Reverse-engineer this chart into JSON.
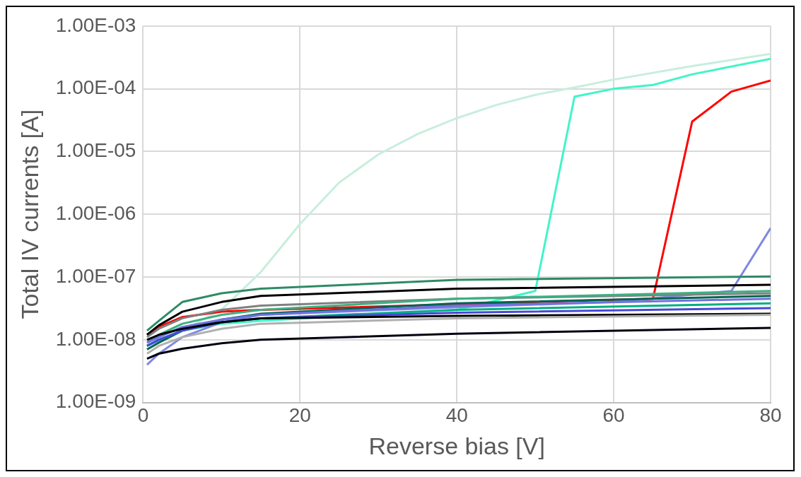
{
  "chart_data": {
    "type": "line",
    "xlabel": "Reverse bias [V]",
    "ylabel": "Total IV currents [A]",
    "log": "y",
    "grid": true,
    "legend": false,
    "marker": "none",
    "line_style": "solid",
    "xlim": [
      0,
      80
    ],
    "xticks": [
      0,
      20,
      40,
      60,
      80
    ],
    "ylim": [
      1e-09,
      0.001
    ],
    "yticks": [
      {
        "value": 1e-09,
        "label": "1.00E-09"
      },
      {
        "value": 1e-08,
        "label": "1.00E-08"
      },
      {
        "value": 1e-07,
        "label": "1.00E-07"
      },
      {
        "value": 1e-06,
        "label": "1.00E-06"
      },
      {
        "value": 1e-05,
        "label": "1.00E-05"
      },
      {
        "value": 0.0001,
        "label": "1.00E-04"
      },
      {
        "value": 0.001,
        "label": "1.00E-03"
      }
    ],
    "series": [
      {
        "color": "#000010",
        "x": [
          0.5,
          2,
          5,
          10,
          15,
          40,
          80
        ],
        "values": [
          5e-09,
          6e-09,
          7.2e-09,
          8.8e-09,
          1e-08,
          1.25e-08,
          1.55e-08
        ]
      },
      {
        "color": "#b0b0b0",
        "x": [
          0.5,
          2,
          5,
          10,
          15,
          40,
          80
        ],
        "values": [
          6e-09,
          8e-09,
          1.1e-08,
          1.5e-08,
          1.8e-08,
          2.2e-08,
          2.5e-08
        ]
      },
      {
        "color": "#000000",
        "x": [
          0.5,
          2,
          5,
          10,
          15,
          40,
          80
        ],
        "values": [
          1e-08,
          1.2e-08,
          1.5e-08,
          1.9e-08,
          2.2e-08,
          2.4e-08,
          2.6e-08
        ]
      },
      {
        "color": "#4848d8",
        "x": [
          0.5,
          2,
          5,
          10,
          15,
          40,
          80
        ],
        "values": [
          8e-09,
          1e-08,
          1.4e-08,
          1.9e-08,
          2.2e-08,
          2.7e-08,
          3.2e-08
        ]
      },
      {
        "color": "#00b080",
        "x": [
          0.5,
          2,
          5,
          10,
          15,
          40,
          80
        ],
        "values": [
          8e-09,
          1e-08,
          1.4e-08,
          1.9e-08,
          2.2e-08,
          3e-08,
          3.8e-08
        ]
      },
      {
        "color": "#7070e0",
        "x": [
          0.5,
          2,
          5,
          10,
          15,
          40,
          80
        ],
        "values": [
          9e-09,
          1.1e-08,
          1.6e-08,
          2.1e-08,
          2.5e-08,
          3.5e-08,
          4.5e-08
        ]
      },
      {
        "color": "#006450",
        "x": [
          0.5,
          2,
          5,
          10,
          15,
          40,
          80
        ],
        "values": [
          7e-09,
          9e-09,
          1.4e-08,
          2.1e-08,
          2.6e-08,
          3.8e-08,
          5e-08
        ]
      },
      {
        "color": "#3cb083",
        "x": [
          0.5,
          2,
          5,
          10,
          15,
          40,
          80
        ],
        "values": [
          9e-09,
          1.2e-08,
          1.8e-08,
          2.5e-08,
          3e-08,
          4.5e-08,
          6e-08
        ]
      },
      {
        "color": "#808080",
        "x": [
          0.5,
          2,
          5,
          10,
          15,
          40,
          80
        ],
        "values": [
          1.1e-08,
          1.5e-08,
          2.2e-08,
          3e-08,
          3.5e-08,
          4.5e-08,
          5.5e-08
        ]
      },
      {
        "color": "#000000",
        "x": [
          0.5,
          2,
          5,
          10,
          15,
          40,
          80
        ],
        "values": [
          1.2e-08,
          1.7e-08,
          2.8e-08,
          4e-08,
          5e-08,
          6.5e-08,
          7.5e-08
        ]
      },
      {
        "color": "#2e8b65",
        "x": [
          0.5,
          2,
          5,
          10,
          15,
          40,
          80
        ],
        "values": [
          1.4e-08,
          2e-08,
          4e-08,
          5.5e-08,
          6.5e-08,
          9e-08,
          1.02e-07
        ]
      },
      {
        "color": "#8088e0",
        "x": [
          0.5,
          2,
          5,
          10,
          15,
          40,
          60,
          75,
          80
        ],
        "values": [
          4e-09,
          6e-09,
          1.1e-08,
          1.9e-08,
          2.5e-08,
          3.3e-08,
          4e-08,
          6e-08,
          6e-07
        ]
      },
      {
        "color": "#ff0000",
        "x": [
          0.5,
          2,
          5,
          10,
          15,
          65,
          70,
          75,
          80
        ],
        "values": [
          1.2e-08,
          1.6e-08,
          2.3e-08,
          2.8e-08,
          3e-08,
          4.5e-08,
          3e-05,
          9e-05,
          0.000135
        ]
      },
      {
        "color": "#40f5c8",
        "x": [
          0.5,
          2,
          5,
          10,
          15,
          40,
          50,
          55,
          60,
          65,
          70,
          80
        ],
        "values": [
          8e-09,
          1e-08,
          1.4e-08,
          1.8e-08,
          2e-08,
          3e-08,
          6e-08,
          7.5e-05,
          0.0001,
          0.000115,
          0.00017,
          0.0003
        ]
      },
      {
        "color": "#c8eedd",
        "x": [
          0.5,
          5,
          10,
          15,
          20,
          25,
          30,
          35,
          40,
          45,
          50,
          55,
          60,
          70,
          80
        ],
        "values": [
          8e-09,
          1.4e-08,
          3e-08,
          1.2e-07,
          7e-07,
          3.2e-06,
          9e-06,
          1.9e-05,
          3.4e-05,
          5.5e-05,
          8e-05,
          0.000105,
          0.00014,
          0.00023,
          0.00036
        ]
      }
    ]
  }
}
